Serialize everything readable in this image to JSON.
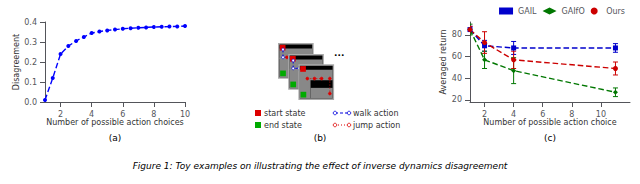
{
  "chart_data": [
    {
      "type": "line",
      "x": [
        1,
        1.5,
        2,
        2.5,
        3,
        3.5,
        4,
        4.5,
        5,
        5.5,
        6,
        6.5,
        7,
        7.5,
        8,
        8.5,
        9,
        9.5,
        10
      ],
      "values": [
        0.01,
        0.12,
        0.24,
        0.28,
        0.305,
        0.325,
        0.345,
        0.352,
        0.358,
        0.362,
        0.366,
        0.369,
        0.371,
        0.373,
        0.375,
        0.376,
        0.377,
        0.378,
        0.38
      ],
      "color": "#0000ff",
      "line_style": "dashed",
      "marker": "circle",
      "xlabel": "Number of possible action choices",
      "ylabel": "Disagreement",
      "xlim": [
        1,
        10
      ],
      "ylim": [
        0.0,
        0.4
      ],
      "xticks": [
        2,
        4,
        6,
        8,
        10
      ],
      "yticks": [
        {
          "value": 0.0,
          "label": "0.0"
        },
        0.1,
        0.2,
        0.3,
        0.4
      ],
      "grid": false,
      "annotations": [
        "(a)"
      ]
    },
    {
      "type": "diagram",
      "series": [
        {
          "name": "start state",
          "color": "#dd0000",
          "marker": "square"
        },
        {
          "name": "end state",
          "color": "#00aa00",
          "marker": "square"
        },
        {
          "name": "walk action",
          "color": "#0000dd",
          "marker": "circle",
          "line_style": "dashed"
        },
        {
          "name": "jump action",
          "color": "#dd0000",
          "marker": "circle",
          "line_style": "dotted"
        }
      ],
      "colors": [
        "#aaaaaa",
        "#000000",
        "#888888"
      ],
      "annotations": [
        "...",
        "(b)"
      ]
    },
    {
      "type": "line",
      "x": [
        1,
        2,
        4,
        11
      ],
      "series": [
        {
          "name": "GAIL",
          "color": "#0000cc",
          "marker": "square",
          "line_style": "dashed",
          "values": [
            85,
            70,
            68,
            68
          ],
          "errors": [
            3,
            5,
            6,
            4
          ]
        },
        {
          "name": "GAIfO",
          "color": "#007700",
          "marker": "diamond",
          "line_style": "dashed",
          "values": [
            85,
            57,
            47,
            27
          ],
          "errors": [
            5,
            8,
            12,
            4
          ]
        },
        {
          "name": "Ours",
          "color": "#cc0000",
          "marker": "circle",
          "line_style": "dashed",
          "values": [
            85,
            73,
            57,
            49
          ],
          "errors": [
            3,
            10,
            8,
            6
          ]
        }
      ],
      "xlabel": "Number of possible action choice",
      "ylabel": "Averaged return",
      "xlim": [
        1,
        12
      ],
      "ylim": [
        18,
        92
      ],
      "xticks": [
        2,
        4,
        6,
        8,
        10
      ],
      "yticks": [
        20,
        40,
        60,
        80
      ],
      "grid": false,
      "legend": "upper right",
      "annotations": [
        "(c)"
      ]
    }
  ],
  "caption": "Figure 1: Toy examples on illustrating the effect of inverse dynamics disagreement"
}
